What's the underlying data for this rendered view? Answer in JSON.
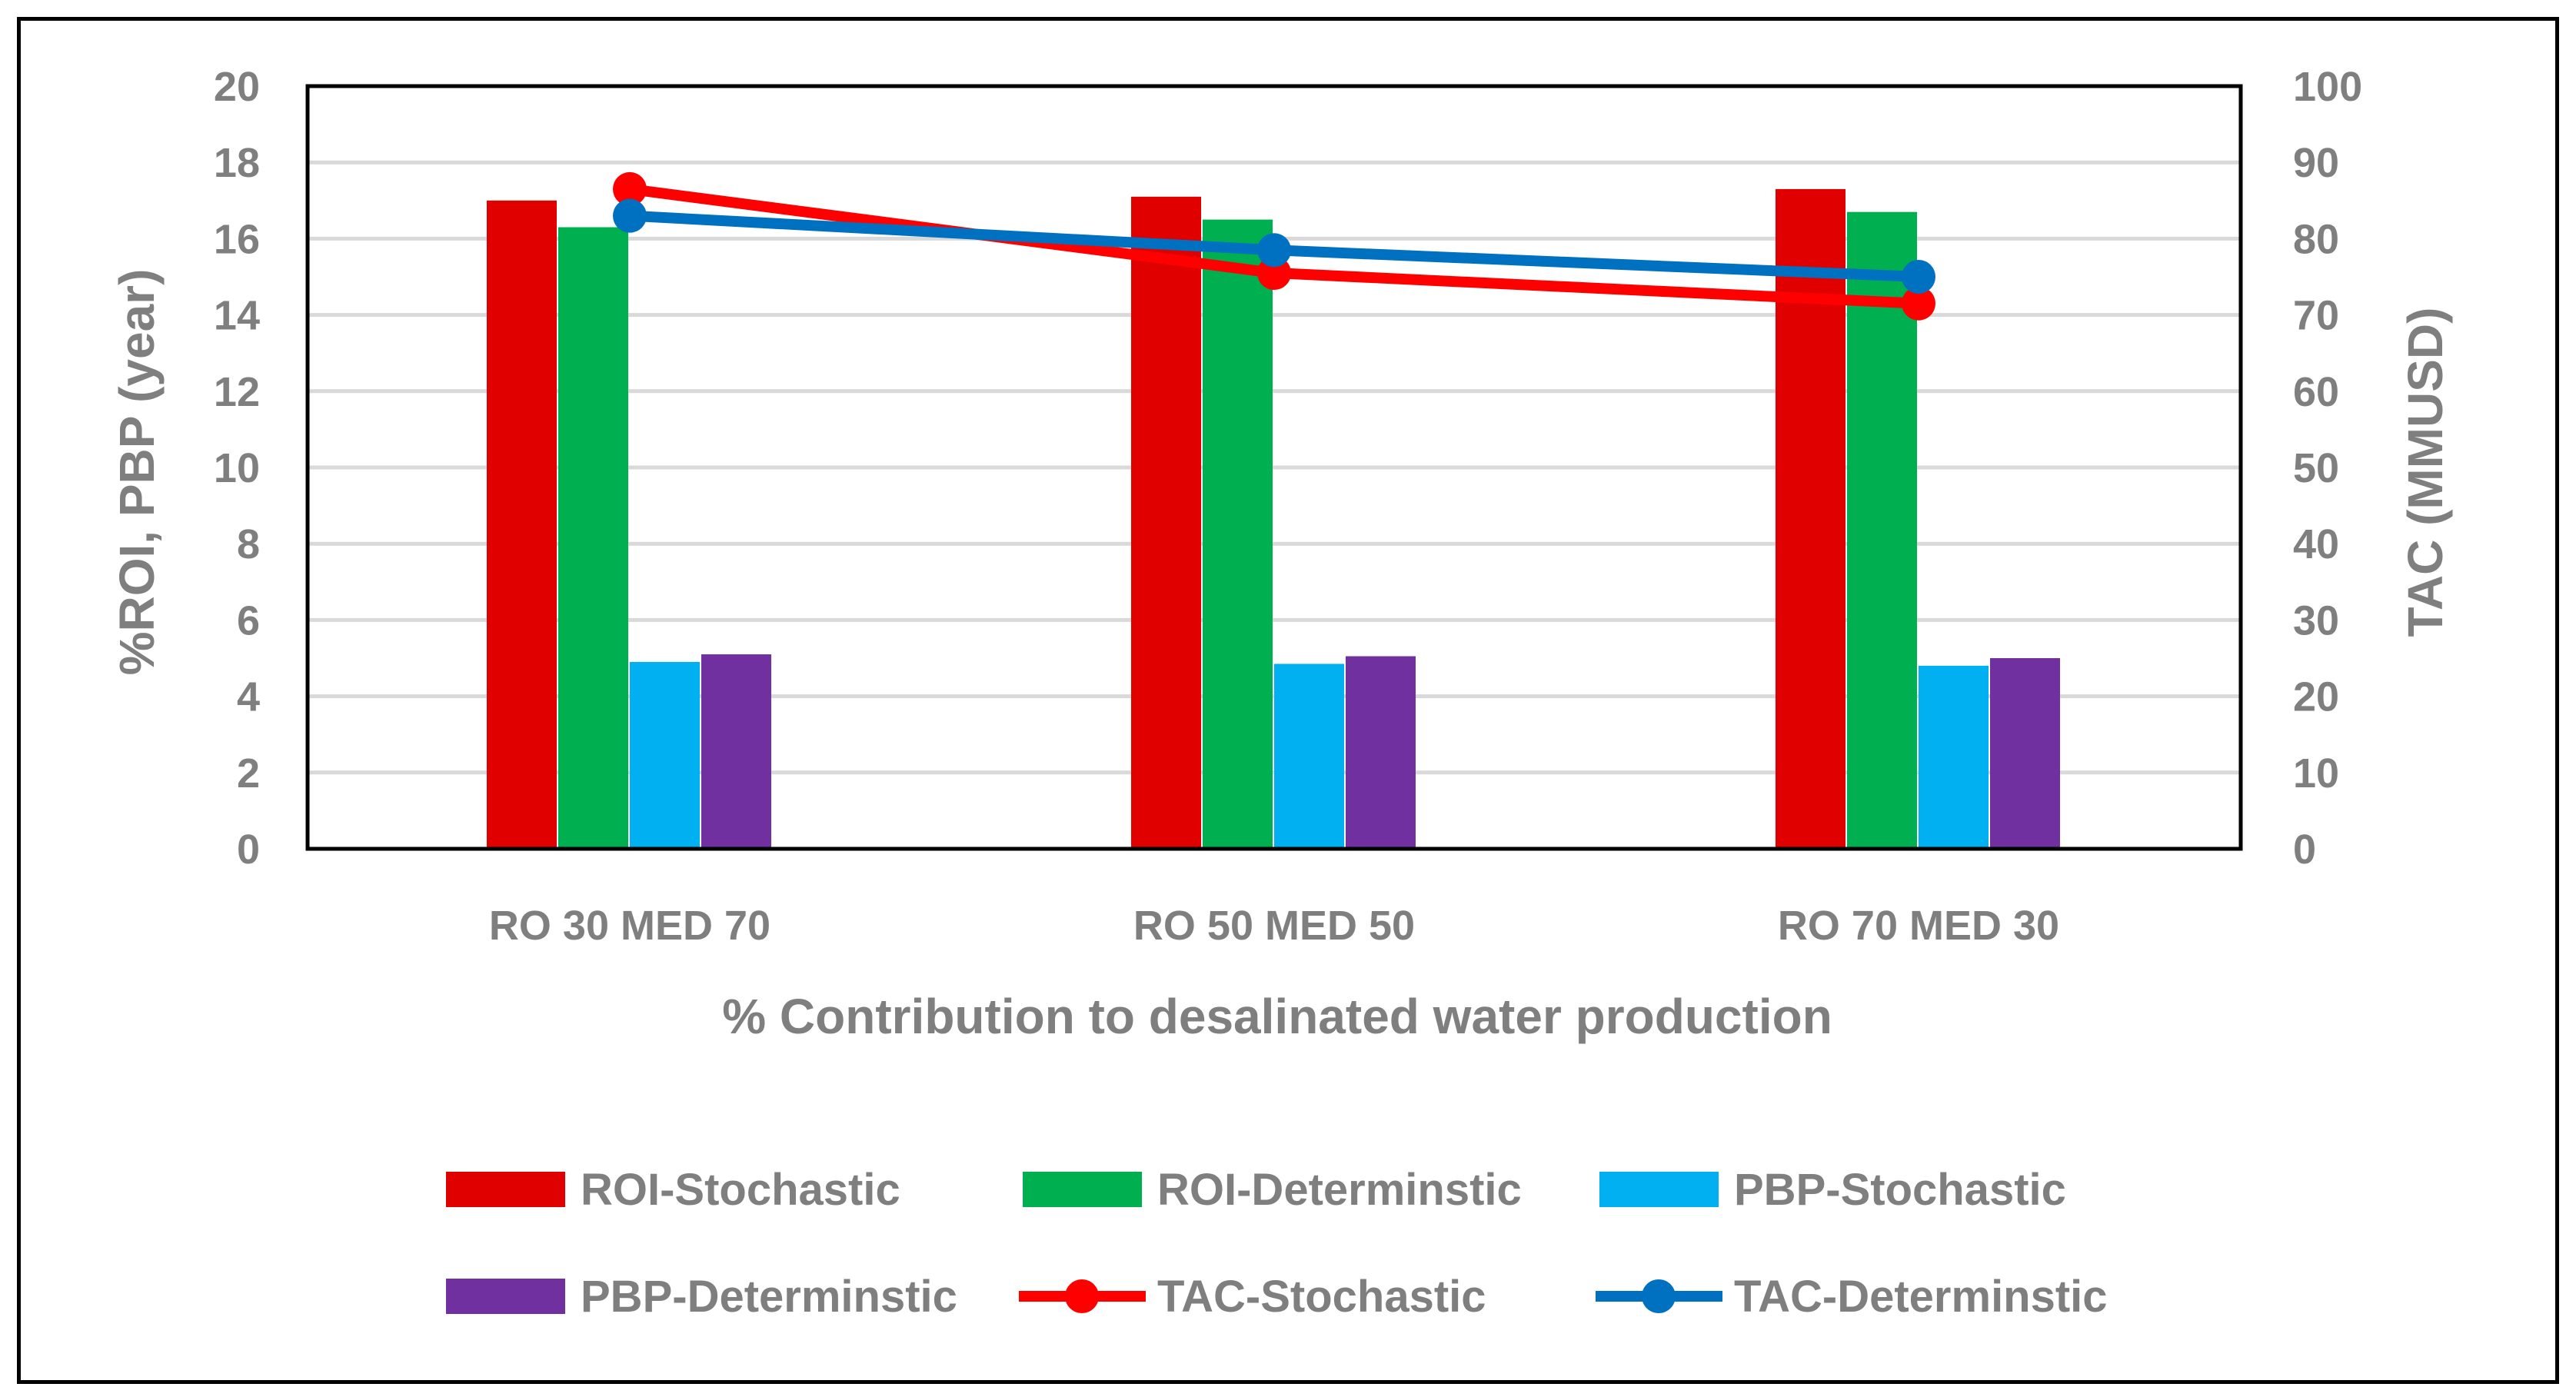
{
  "chart_data": {
    "type": "bar",
    "categories": [
      "RO 30 MED 70",
      "RO 50 MED 50",
      "RO 70 MED 30"
    ],
    "series": [
      {
        "name": "ROI-Stochastic",
        "kind": "bar",
        "axis": "left",
        "color": "#e00000",
        "values": [
          17.0,
          17.1,
          17.3
        ]
      },
      {
        "name": "ROI-Determinstic",
        "kind": "bar",
        "axis": "left",
        "color": "#00b050",
        "values": [
          16.3,
          16.5,
          16.7
        ]
      },
      {
        "name": "PBP-Stochastic",
        "kind": "bar",
        "axis": "left",
        "color": "#00b0f0",
        "values": [
          4.9,
          4.85,
          4.8
        ]
      },
      {
        "name": "PBP-Determinstic",
        "kind": "bar",
        "axis": "left",
        "color": "#7030a0",
        "values": [
          5.1,
          5.05,
          5.0
        ]
      },
      {
        "name": "TAC-Stochastic",
        "kind": "line",
        "axis": "right",
        "color": "#ff0000",
        "values": [
          86.5,
          75.5,
          71.5
        ]
      },
      {
        "name": "TAC-Determinstic",
        "kind": "line",
        "axis": "right",
        "color": "#0070c0",
        "values": [
          83.0,
          78.5,
          75.0
        ]
      }
    ],
    "xlabel": "% Contribution to desalinated water production",
    "ylabel": "%ROI, PBP (year)",
    "y2label": "TAC (MMUSD)",
    "ylim": [
      0,
      20
    ],
    "y2lim": [
      0,
      100
    ],
    "yticks": [
      "0",
      "2",
      "4",
      "6",
      "8",
      "10",
      "12",
      "14",
      "16",
      "18",
      "20"
    ],
    "y2ticks": [
      "0",
      "10",
      "20",
      "30",
      "40",
      "50",
      "60",
      "70",
      "80",
      "90",
      "100"
    ],
    "grid": true,
    "legend": "bottom"
  }
}
